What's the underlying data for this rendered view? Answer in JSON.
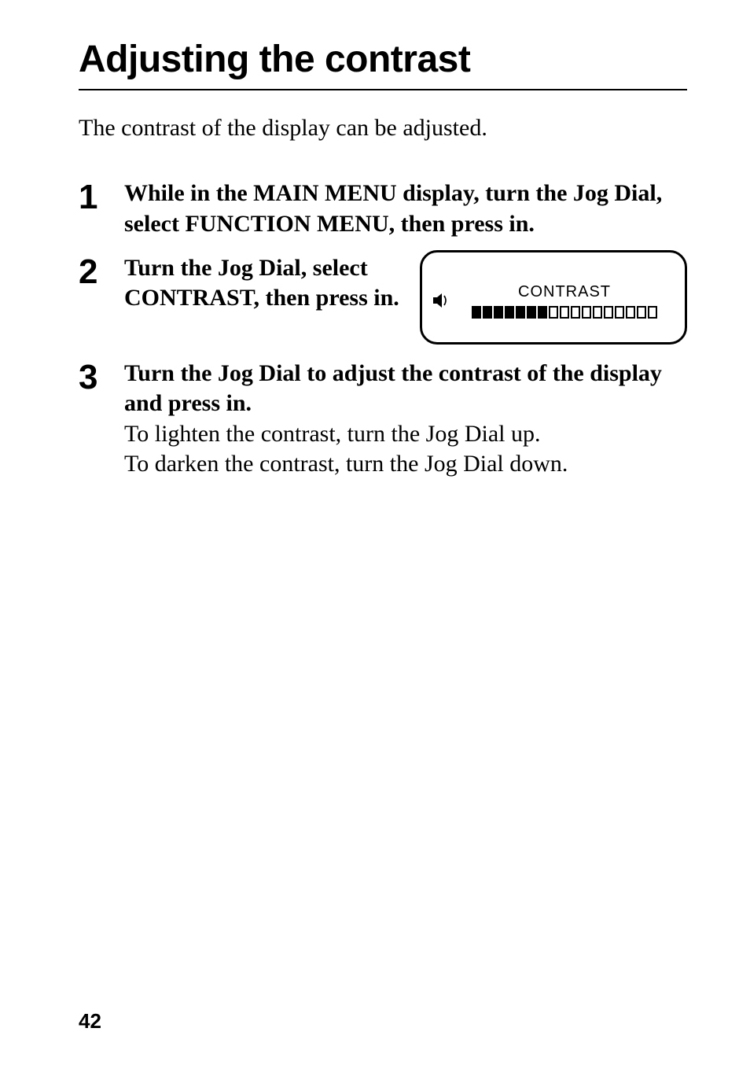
{
  "title": "Adjusting the contrast",
  "intro": "The contrast of the display can be adjusted.",
  "steps": {
    "one": {
      "num": "1",
      "bold": "While in the MAIN MENU display, turn the Jog Dial, select FUNCTION MENU, then press in."
    },
    "two": {
      "num": "2",
      "bold": "Turn the Jog Dial, select CONTRAST, then press in."
    },
    "three": {
      "num": "3",
      "bold": "Turn the Jog Dial to adjust the contrast of the display and press in.",
      "body1": "To lighten the contrast, turn the Jog Dial up.",
      "body2": "To darken the contrast, turn the Jog Dial down."
    }
  },
  "lcd": {
    "label": "CONTRAST",
    "filled_segments": 7,
    "empty_segments": 10
  },
  "page_number": "42",
  "colors": {
    "fg": "#000000",
    "bg": "#ffffff"
  }
}
